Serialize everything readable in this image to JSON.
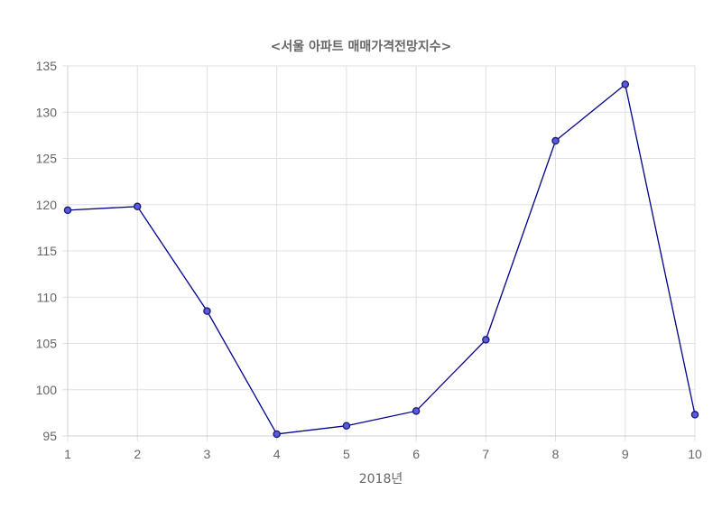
{
  "chart_data": {
    "type": "line",
    "title": "<서울 아파트 매매가격전망지수>",
    "xlabel": "2018년",
    "ylabel": "",
    "x": [
      1,
      2,
      3,
      4,
      5,
      6,
      7,
      8,
      9,
      10
    ],
    "series": [
      {
        "values": [
          119.4,
          119.8,
          108.5,
          95.2,
          96.1,
          97.7,
          105.4,
          126.9,
          133.0,
          97.3
        ]
      }
    ],
    "ylim": [
      95,
      135
    ],
    "yticks": [
      95,
      100,
      105,
      110,
      115,
      120,
      125,
      130,
      135
    ],
    "xlim": [
      1,
      10
    ],
    "grid": true,
    "legend": "none",
    "colors": {
      "line": "#00008b",
      "point_fill": "#5a5ae0",
      "point_stroke": "#1a1a6e"
    }
  }
}
